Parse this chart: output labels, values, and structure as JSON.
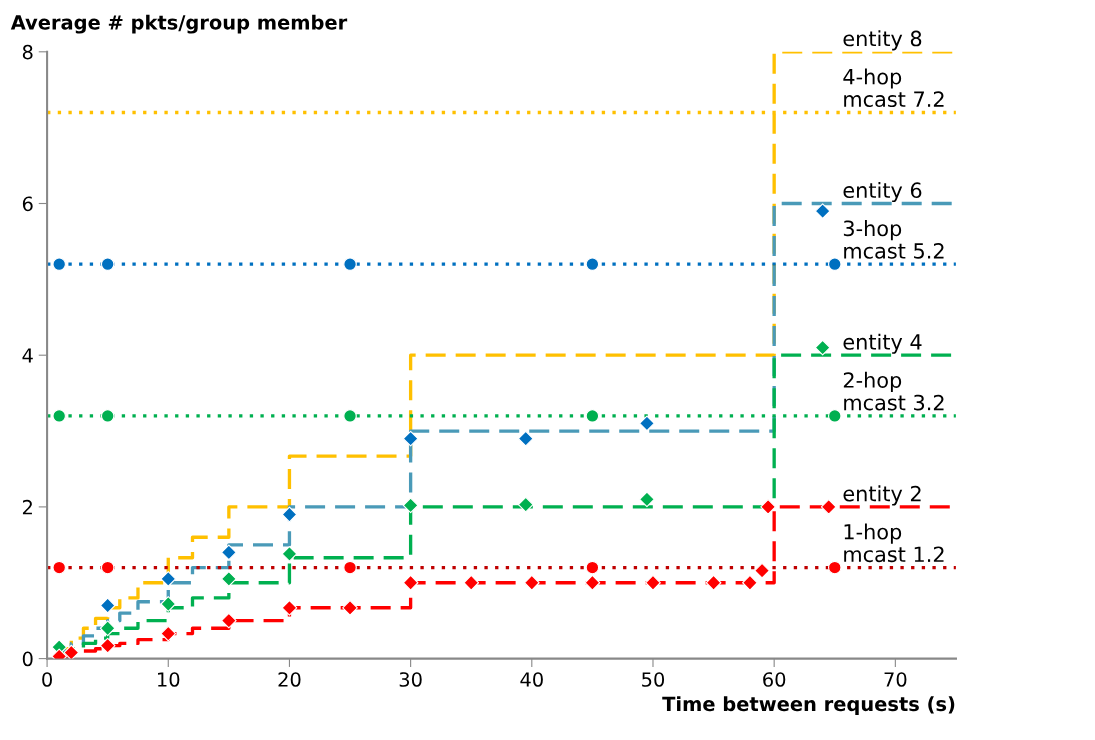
{
  "chart_data": {
    "type": "line",
    "ylabel": "Average # pkts/group member",
    "xlabel": "Time between requests (s)",
    "xlim": [
      0,
      75
    ],
    "xticks": [
      0,
      10,
      20,
      30,
      40,
      50,
      60,
      70
    ],
    "ylim": [
      0,
      8
    ],
    "yticks": [
      0,
      2,
      4,
      6,
      8
    ],
    "grid": false,
    "series": [
      {
        "name": "entity 8",
        "color": "#ffc000",
        "line_style": "dashed",
        "x": [
          1,
          2,
          2,
          3,
          3,
          4,
          4,
          5,
          5,
          6,
          6,
          7.5,
          7.5,
          10,
          10,
          12,
          12,
          15,
          15,
          20,
          20,
          30,
          30,
          60,
          60,
          75
        ],
        "values": [
          0.13,
          0.13,
          0.27,
          0.27,
          0.4,
          0.4,
          0.53,
          0.53,
          0.67,
          0.67,
          0.8,
          0.8,
          1.0,
          1.0,
          1.33,
          1.33,
          1.6,
          1.6,
          2,
          2,
          2.67,
          2.67,
          4,
          4,
          8,
          8
        ]
      },
      {
        "name": "4-hop\nmcast 7.2",
        "color": "#ffc000",
        "line_style": "dotted",
        "marker": "none",
        "x": [
          0,
          75
        ],
        "values": [
          7.2,
          7.2
        ]
      },
      {
        "name": "entity 6",
        "color": "#4a9ab8",
        "line_style": "dashed",
        "x": [
          1,
          2,
          2,
          3,
          3,
          4,
          4,
          5,
          5,
          6,
          6,
          7.5,
          7.5,
          10,
          10,
          12,
          12,
          15,
          15,
          20,
          20,
          30,
          30,
          60,
          60,
          75
        ],
        "values": [
          0.1,
          0.1,
          0.2,
          0.2,
          0.3,
          0.3,
          0.4,
          0.4,
          0.5,
          0.5,
          0.6,
          0.6,
          0.75,
          0.75,
          1,
          1,
          1.2,
          1.2,
          1.5,
          1.5,
          2,
          2,
          3,
          3,
          6,
          6
        ]
      },
      {
        "type": "scatter",
        "color": "#0070c0",
        "marker": "diamond",
        "x": [
          5,
          10,
          15,
          20,
          30,
          39.5,
          49.5,
          64
        ],
        "values": [
          0.7,
          1.05,
          1.4,
          1.9,
          2.9,
          2.9,
          3.1,
          5.9
        ]
      },
      {
        "name": "3-hop\nmcast 5.2",
        "color": "#0070c0",
        "line_style": "dotted",
        "marker": "none",
        "x": [
          0,
          75
        ],
        "values": [
          5.2,
          5.2
        ]
      },
      {
        "type": "scatter",
        "color": "#0070c0",
        "marker": "circle",
        "x": [
          1,
          5,
          25,
          45,
          65
        ],
        "values": [
          5.2,
          5.2,
          5.2,
          5.2,
          5.2
        ]
      },
      {
        "name": "entity 4",
        "color": "#00b050",
        "line_style": "dashed",
        "x": [
          1,
          2,
          2,
          3,
          3,
          4,
          4,
          5,
          5,
          6,
          6,
          7.5,
          7.5,
          10,
          10,
          12,
          12,
          15,
          15,
          20,
          20,
          30,
          30,
          60,
          60,
          75
        ],
        "values": [
          0.07,
          0.07,
          0.13,
          0.13,
          0.2,
          0.2,
          0.27,
          0.27,
          0.33,
          0.33,
          0.4,
          0.4,
          0.5,
          0.5,
          0.67,
          0.67,
          0.8,
          0.8,
          1,
          1,
          1.33,
          1.33,
          2,
          2,
          4,
          4
        ]
      },
      {
        "type": "scatter",
        "color": "#00b050",
        "marker": "diamond",
        "x": [
          1,
          5,
          10,
          15,
          20,
          30,
          39.5,
          49.5,
          64
        ],
        "values": [
          0.15,
          0.4,
          0.72,
          1.05,
          1.38,
          2.02,
          2.03,
          2.1,
          4.1
        ]
      },
      {
        "name": "2-hop\nmcast 3.2",
        "color": "#00b050",
        "line_style": "dotted",
        "marker": "none",
        "x": [
          0,
          75
        ],
        "values": [
          3.2,
          3.2
        ]
      },
      {
        "type": "scatter",
        "color": "#00b050",
        "marker": "circle",
        "x": [
          1,
          5,
          25,
          45,
          65
        ],
        "values": [
          3.2,
          3.2,
          3.2,
          3.2,
          3.2
        ]
      },
      {
        "name": "entity 2",
        "color": "#ff0000",
        "line_style": "dashed",
        "x": [
          1,
          2,
          2,
          3,
          3,
          4,
          4,
          5,
          5,
          6,
          6,
          7.5,
          7.5,
          10,
          10,
          12,
          12,
          15,
          15,
          20,
          20,
          30,
          30,
          60,
          60,
          75
        ],
        "values": [
          0.03,
          0.03,
          0.07,
          0.07,
          0.1,
          0.1,
          0.13,
          0.13,
          0.17,
          0.17,
          0.2,
          0.2,
          0.25,
          0.25,
          0.33,
          0.33,
          0.4,
          0.4,
          0.5,
          0.5,
          0.67,
          0.67,
          1,
          1,
          2,
          2
        ]
      },
      {
        "type": "scatter",
        "color": "#ff0000",
        "marker": "diamond",
        "x": [
          1,
          2,
          5,
          10,
          15,
          20,
          25,
          30,
          35,
          40,
          45,
          50,
          55,
          58,
          59,
          59.5,
          64.5
        ],
        "values": [
          0.03,
          0.08,
          0.17,
          0.33,
          0.5,
          0.67,
          0.67,
          1.0,
          1.0,
          1.0,
          1.0,
          1.0,
          1.0,
          1.0,
          1.16,
          2.0,
          2.0
        ]
      },
      {
        "name": "1-hop\nmcast 1.2",
        "color": "#c00000",
        "line_style": "dotted",
        "marker": "none",
        "x": [
          0,
          75
        ],
        "values": [
          1.2,
          1.2
        ]
      },
      {
        "type": "scatter",
        "color": "#ff0000",
        "marker": "circle",
        "x": [
          1,
          5,
          25,
          45,
          65
        ],
        "values": [
          1.2,
          1.2,
          1.2,
          1.2,
          1.2
        ]
      }
    ]
  }
}
